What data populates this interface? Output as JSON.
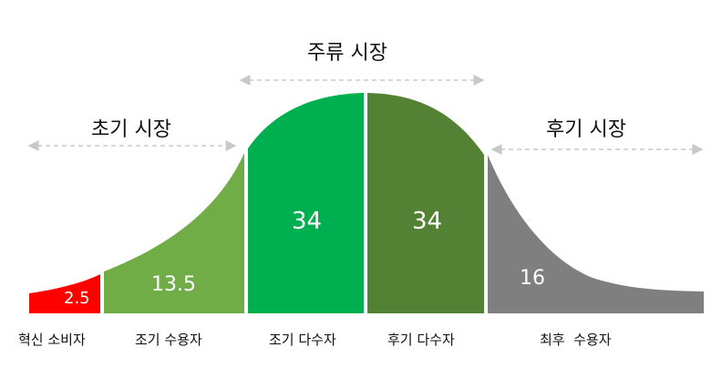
{
  "markets": {
    "early": "초기 시장",
    "mainstream": "주류 시장",
    "late": "후기 시장"
  },
  "segments": [
    {
      "label": "혁신 소비자",
      "value": "2.5",
      "color": "#ff0000"
    },
    {
      "label": "조기 수용자",
      "value": "13.5",
      "color": "#70ad47"
    },
    {
      "label": "조기 다수자",
      "value": "34",
      "color": "#00b050"
    },
    {
      "label": "후기 다수자",
      "value": "34",
      "color": "#548235"
    },
    {
      "label": "최후  수용자",
      "value": "16",
      "color": "#7f7f7f"
    }
  ]
}
